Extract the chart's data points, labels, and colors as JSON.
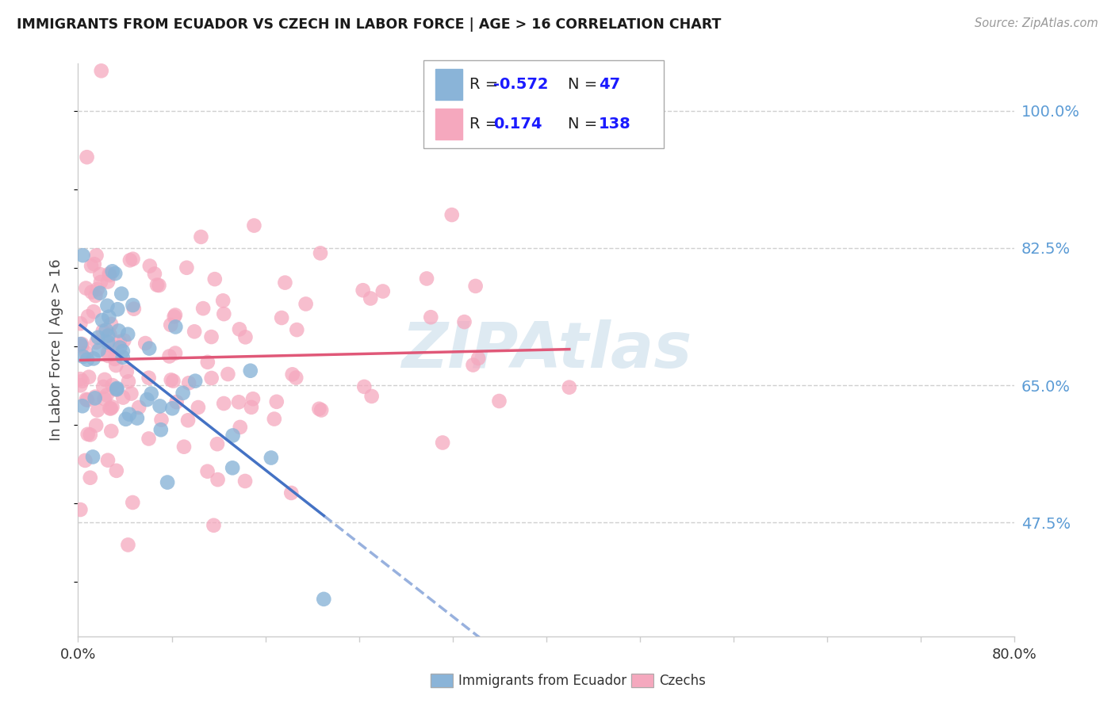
{
  "title": "IMMIGRANTS FROM ECUADOR VS CZECH IN LABOR FORCE | AGE > 16 CORRELATION CHART",
  "source": "Source: ZipAtlas.com",
  "ylabel": "In Labor Force | Age > 16",
  "xlim": [
    0.0,
    0.8
  ],
  "ylim": [
    0.33,
    1.06
  ],
  "ytick_vals": [
    0.475,
    0.65,
    0.825,
    1.0
  ],
  "ytick_labels": [
    "47.5%",
    "65.0%",
    "82.5%",
    "100.0%"
  ],
  "xtick_vals": [
    0.0,
    0.08,
    0.16,
    0.24,
    0.32,
    0.4,
    0.48,
    0.56,
    0.64,
    0.72,
    0.8
  ],
  "xtick_edge_labels": [
    "0.0%",
    "80.0%"
  ],
  "legend_ec_R": "-0.572",
  "legend_ec_N": "47",
  "legend_cz_R": "0.174",
  "legend_cz_N": "138",
  "ecuador_color": "#8ab4d8",
  "czech_color": "#f5a8be",
  "ecuador_line_color": "#4472c4",
  "czech_line_color": "#e05878",
  "grid_color": "#d0d0d0",
  "spine_color": "#cccccc",
  "ytick_color": "#5b9bd5",
  "title_color": "#1a1a1a",
  "source_color": "#999999",
  "watermark_color": "#c8dcea",
  "label_color": "#444444",
  "legend_text_color": "#1a1aff",
  "bottom_label_color": "#333333"
}
